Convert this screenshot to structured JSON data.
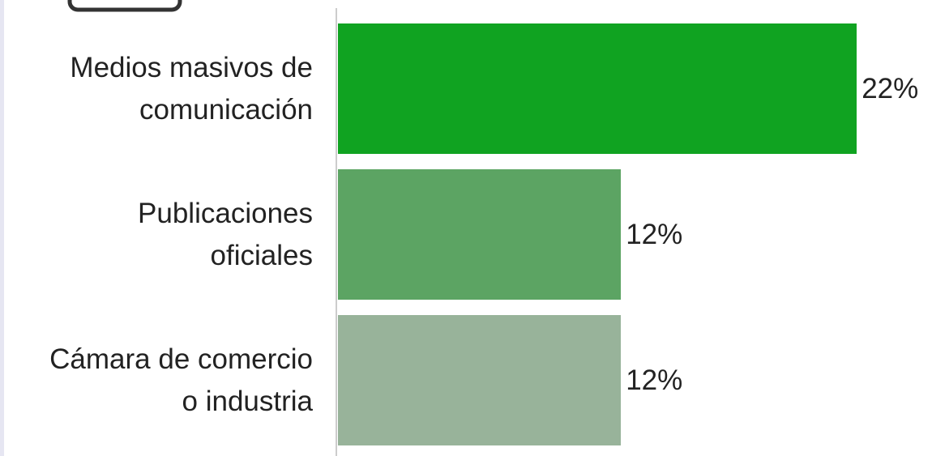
{
  "chart_data": {
    "type": "bar",
    "orientation": "horizontal",
    "categories": [
      "Medios masivos de\ncomunicación",
      "Publicaciones\noficiales",
      "Cámara de comercio\no industria"
    ],
    "values": [
      22,
      12,
      12
    ],
    "value_labels": [
      "22%",
      "12%",
      "12%"
    ],
    "colors": [
      "#10a321",
      "#5ca463",
      "#98b39a"
    ]
  }
}
